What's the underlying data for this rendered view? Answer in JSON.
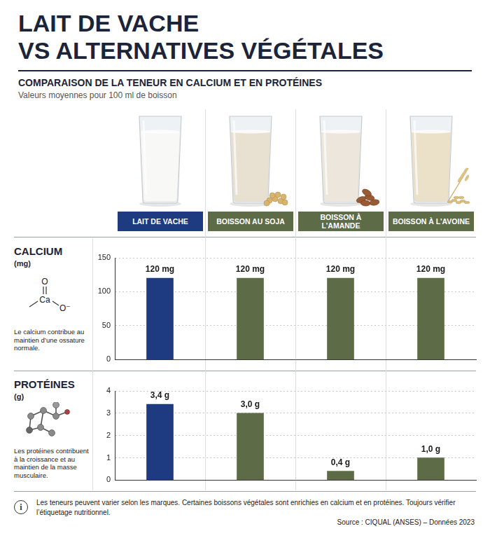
{
  "header": {
    "title": [
      "LAIT DE VACHE",
      "VS ALTERNATIVES VÉGÉTALES"
    ],
    "subtitle": "COMPARAISON DE LA TENEUR EN CALCIUM ET EN PROTÉINES",
    "note": "Valeurs moyennes pour 100 ml de boisson"
  },
  "chart_data": [
    {
      "type": "bar",
      "title": "CALCIUM",
      "ylabel": "(mg)",
      "annotation": "Le calcium contribue au maintien d’une ossature normale.",
      "categories": [
        "LAIT DE VACHE",
        "BOISSON AU SOJA",
        "BOISSON À L’AMANDE",
        "BOISSON À L’AVOINE"
      ],
      "values": [
        120,
        120,
        120,
        120
      ],
      "value_labels": [
        "120 mg",
        "120 mg",
        "120 mg",
        "120 mg"
      ],
      "colors": [
        "#1e3a80",
        "#5d6b47",
        "#5d6b47",
        "#5d6b47"
      ],
      "ylim": [
        0,
        150
      ],
      "yticks": [
        0,
        50,
        100,
        150
      ],
      "grid": true,
      "data_labels": true,
      "tick_labels": "y"
    },
    {
      "type": "bar",
      "title": "PROTÉINES",
      "ylabel": "(g)",
      "annotation": "Les protéines contribuent à la croissance et au maintien de la masse musculaire.",
      "categories": [
        "LAIT DE VACHE",
        "BOISSON AU SOJA",
        "BOISSON À L’AMANDE",
        "BOISSON À L’AVOINE"
      ],
      "values": [
        3.4,
        3.0,
        0.4,
        1.0
      ],
      "value_labels": [
        "3,4 g",
        "3,0 g",
        "0,4 g",
        "1,0 g"
      ],
      "colors": [
        "#1e3a80",
        "#5d6b47",
        "#5d6b47",
        "#5d6b47"
      ],
      "ylim": [
        0,
        4
      ],
      "yticks": [
        0,
        1,
        2,
        3,
        4
      ],
      "grid": true,
      "data_labels": true,
      "tick_labels": "y"
    }
  ],
  "icons": {
    "calcium": [
      "O",
      "Ca",
      "O⁻"
    ],
    "info": "i"
  },
  "footer": {
    "note": "Les teneurs peuvent varier selon les marques. Certaines boissons végétales sont enrichies en calcium et en protéines. Toujours vérifier l’étiquetage nutritionnel.",
    "source": "Source : CIQUAL (ANSES) – Données 2023"
  }
}
